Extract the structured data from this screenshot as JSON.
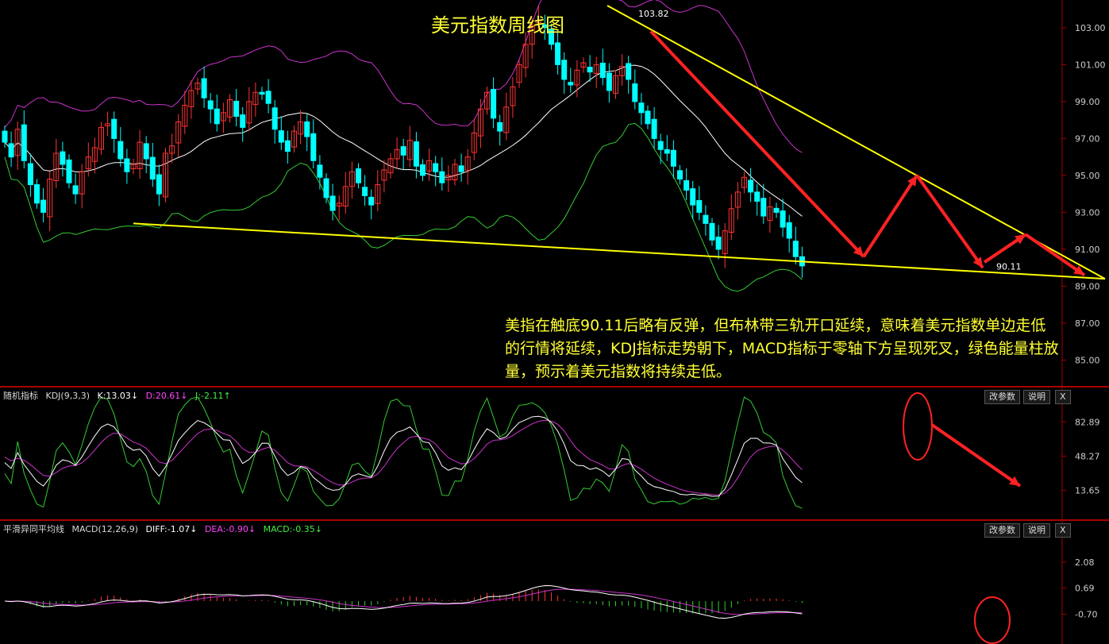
{
  "title": "美元指数周线图",
  "note": "美指在触底90.11后略有反弹，但布林带三轨开口延续，意味着美元指数单边走低的行情将延续，KDJ指标走势朝下，MACD指标于零轴下方呈现死叉，绿色能量柱放量，预示着美元指数将持续走低。",
  "panels": {
    "kdj": {
      "name": "随机指标",
      "params": "KDJ(9,3,3)",
      "k": "K:13.03↓",
      "d": "D:20.61↓",
      "j": "J:-2.11↑"
    },
    "macd": {
      "name": "平滑异同平均线",
      "params": "MACD(12,26,9)",
      "diff": "DIFF:-1.07↓",
      "dea": "DEA:-0.90↓",
      "macd": "MACD:-0.35↓"
    }
  },
  "buttons": {
    "params": "改参数",
    "help": "说明",
    "close": "X"
  },
  "colors": {
    "up": "#ff3333",
    "down": "#00ffff",
    "mid": "#ffffff",
    "upper": "#cc33cc",
    "lower": "#33cc33",
    "trend": "#ffff00",
    "arrow": "#ff2222"
  },
  "chart_data": [
    {
      "type": "candlestick",
      "title": "美元指数周线图",
      "y_ticks": [
        "103.00",
        "101.00",
        "99.00",
        "97.00",
        "95.00",
        "93.00",
        "91.00",
        "89.00",
        "87.00",
        "85.00"
      ],
      "ylim": [
        83.6,
        104.5
      ],
      "annotations": [
        "103.82",
        "90.11"
      ],
      "closes": [
        96.8,
        96.0,
        97.5,
        95.8,
        94.5,
        93.5,
        93.0,
        94.8,
        96.2,
        95.6,
        94.6,
        94.0,
        95.2,
        96.0,
        96.5,
        97.6,
        97.8,
        97.0,
        95.9,
        95.2,
        95.6,
        96.8,
        95.9,
        94.8,
        94.0,
        96.2,
        96.6,
        97.9,
        98.8,
        99.6,
        100.0,
        99.2,
        98.6,
        97.8,
        98.4,
        99.1,
        98.2,
        97.6,
        99.0,
        99.5,
        99.4,
        98.9,
        97.5,
        96.8,
        96.3,
        97.4,
        97.9,
        97.1,
        95.8,
        94.9,
        93.8,
        93.1,
        93.5,
        94.4,
        95.2,
        94.6,
        93.9,
        93.4,
        94.5,
        95.3,
        95.9,
        96.4,
        96.1,
        96.9,
        95.5,
        95.0,
        95.8,
        95.2,
        94.6,
        95.0,
        95.6,
        95.2,
        96.0,
        97.3,
        98.6,
        99.5,
        98.1,
        97.4,
        98.7,
        99.8,
        101.0,
        102.1,
        103.1,
        103.4,
        103.0,
        102.1,
        101.0,
        100.2,
        99.9,
        100.7,
        101.1,
        100.6,
        101.0,
        100.3,
        99.6,
        100.4,
        100.9,
        100.2,
        99.0,
        98.4,
        97.8,
        97.0,
        96.4,
        96.2,
        95.5,
        94.8,
        94.2,
        93.4,
        93.0,
        92.4,
        91.5,
        91.0,
        92.0,
        93.2,
        94.1,
        94.9,
        94.1,
        93.6,
        92.8,
        93.3,
        93.0,
        92.2,
        91.6,
        90.6,
        90.1
      ],
      "bollinger": [
        "upper",
        "middle",
        "lower"
      ]
    },
    {
      "type": "line",
      "title": "KDJ(9,3,3)",
      "y_ticks": [
        "82.89",
        "48.27",
        "13.65"
      ],
      "series": [
        {
          "name": "K"
        },
        {
          "name": "D"
        },
        {
          "name": "J"
        }
      ]
    },
    {
      "type": "bar",
      "title": "MACD(12,26,9)",
      "y_ticks": [
        "2.08",
        "0.69",
        "-0.70"
      ],
      "series": [
        {
          "name": "DIFF"
        },
        {
          "name": "DEA"
        },
        {
          "name": "MACD"
        }
      ]
    }
  ]
}
